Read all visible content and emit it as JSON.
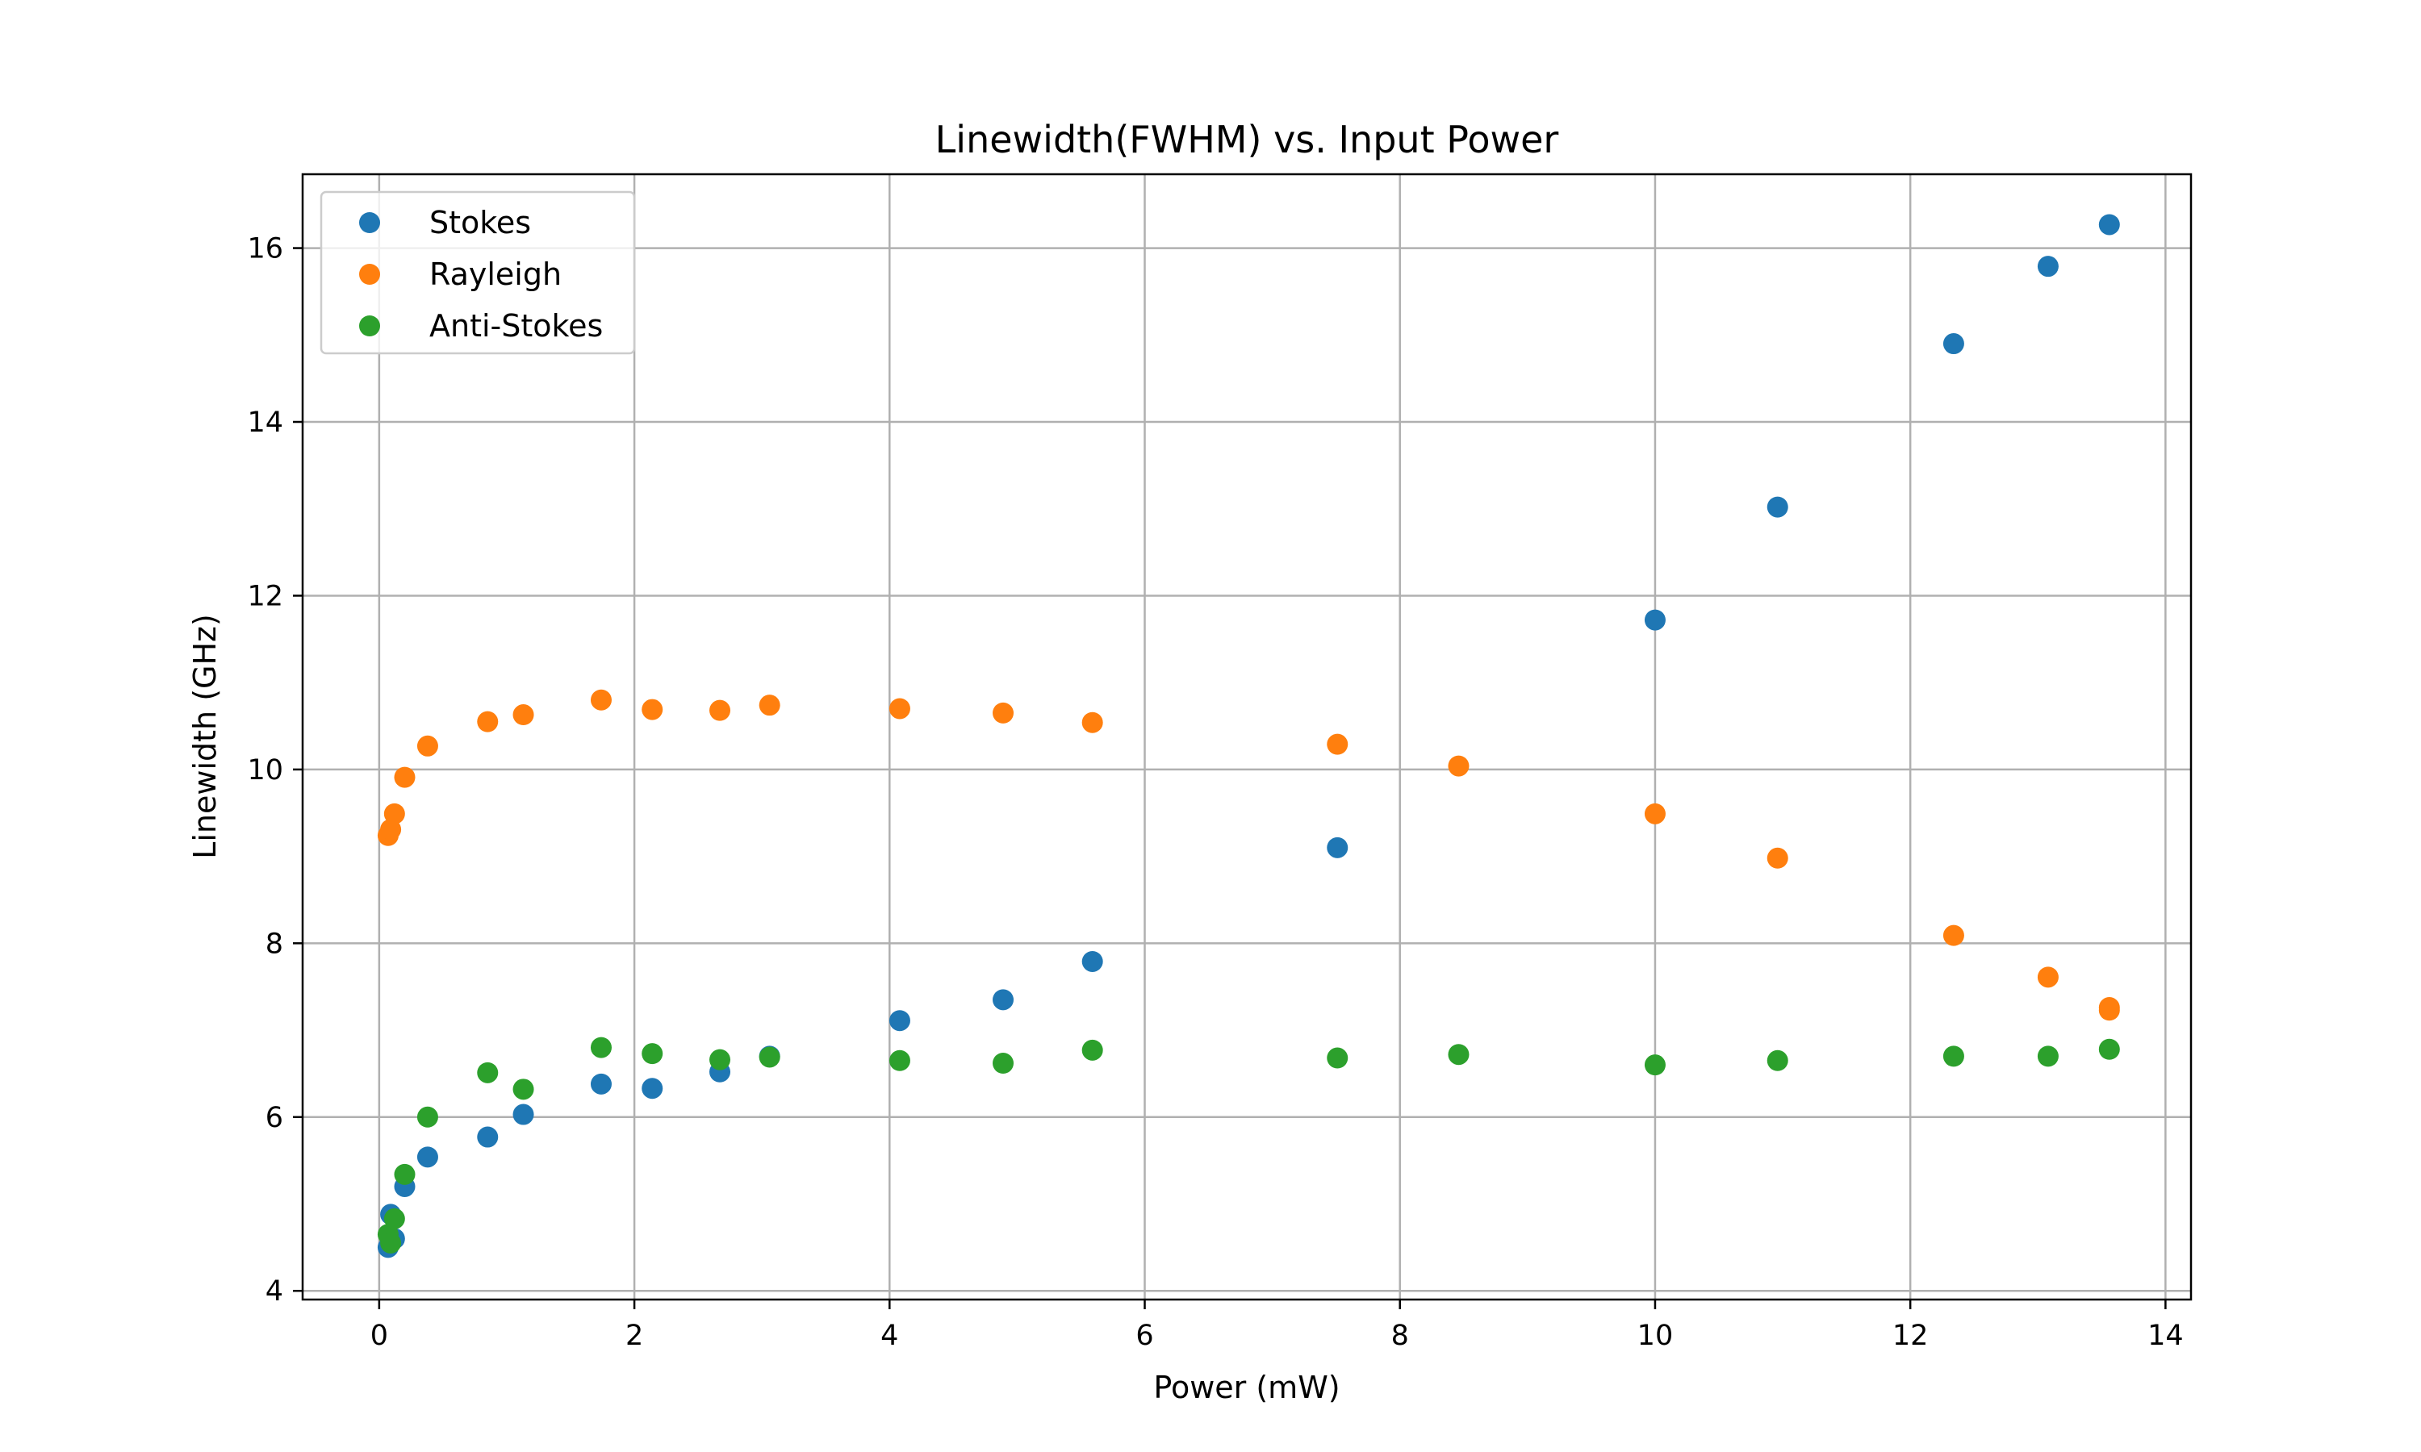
{
  "chart_data": {
    "type": "scatter",
    "title": "Linewidth(FWHM) vs. Input Power",
    "xlabel": "Power (mW)",
    "ylabel": "Linewidth (GHz)",
    "xlim": [
      -0.6,
      14.2
    ],
    "ylim": [
      3.9,
      16.85
    ],
    "x_ticks": [
      0,
      2,
      4,
      6,
      8,
      10,
      12,
      14
    ],
    "y_ticks": [
      4,
      6,
      8,
      10,
      12,
      14,
      16
    ],
    "grid": true,
    "legend_position": "top-left",
    "series": [
      {
        "name": "Stokes",
        "color": "#1f77b4",
        "x": [
          0.07,
          0.09,
          0.12,
          0.2,
          0.38,
          0.85,
          1.13,
          1.74,
          2.14,
          2.67,
          3.06,
          4.08,
          4.89,
          5.59,
          7.51,
          10.0,
          10.96,
          12.34,
          13.08,
          13.56
        ],
        "y": [
          4.5,
          4.88,
          4.6,
          5.2,
          5.54,
          5.77,
          6.03,
          6.38,
          6.33,
          6.52,
          6.7,
          7.11,
          7.35,
          7.79,
          9.1,
          11.72,
          13.02,
          14.9,
          15.79,
          16.27
        ]
      },
      {
        "name": "Rayleigh",
        "color": "#ff7f0e",
        "x": [
          0.07,
          0.09,
          0.12,
          0.2,
          0.38,
          0.85,
          1.13,
          1.74,
          2.14,
          2.67,
          3.06,
          4.08,
          4.89,
          5.59,
          7.51,
          8.46,
          10.0,
          10.96,
          12.34,
          13.08,
          13.56,
          13.56
        ],
        "y": [
          9.24,
          9.31,
          9.49,
          9.91,
          10.27,
          10.55,
          10.63,
          10.8,
          10.69,
          10.68,
          10.74,
          10.7,
          10.65,
          10.54,
          10.29,
          10.04,
          9.49,
          8.98,
          8.09,
          7.61,
          7.26,
          7.23
        ]
      },
      {
        "name": "Anti-Stokes",
        "color": "#2ca02c",
        "x": [
          0.07,
          0.09,
          0.12,
          0.2,
          0.38,
          0.85,
          1.13,
          1.74,
          2.14,
          2.67,
          3.06,
          4.08,
          4.89,
          5.59,
          7.51,
          8.46,
          10.0,
          10.96,
          12.34,
          13.08,
          13.56
        ],
        "y": [
          4.65,
          4.55,
          4.83,
          5.34,
          6.0,
          6.51,
          6.32,
          6.8,
          6.73,
          6.66,
          6.69,
          6.65,
          6.62,
          6.77,
          6.68,
          6.72,
          6.6,
          6.65,
          6.7,
          6.7,
          6.78
        ]
      }
    ]
  }
}
